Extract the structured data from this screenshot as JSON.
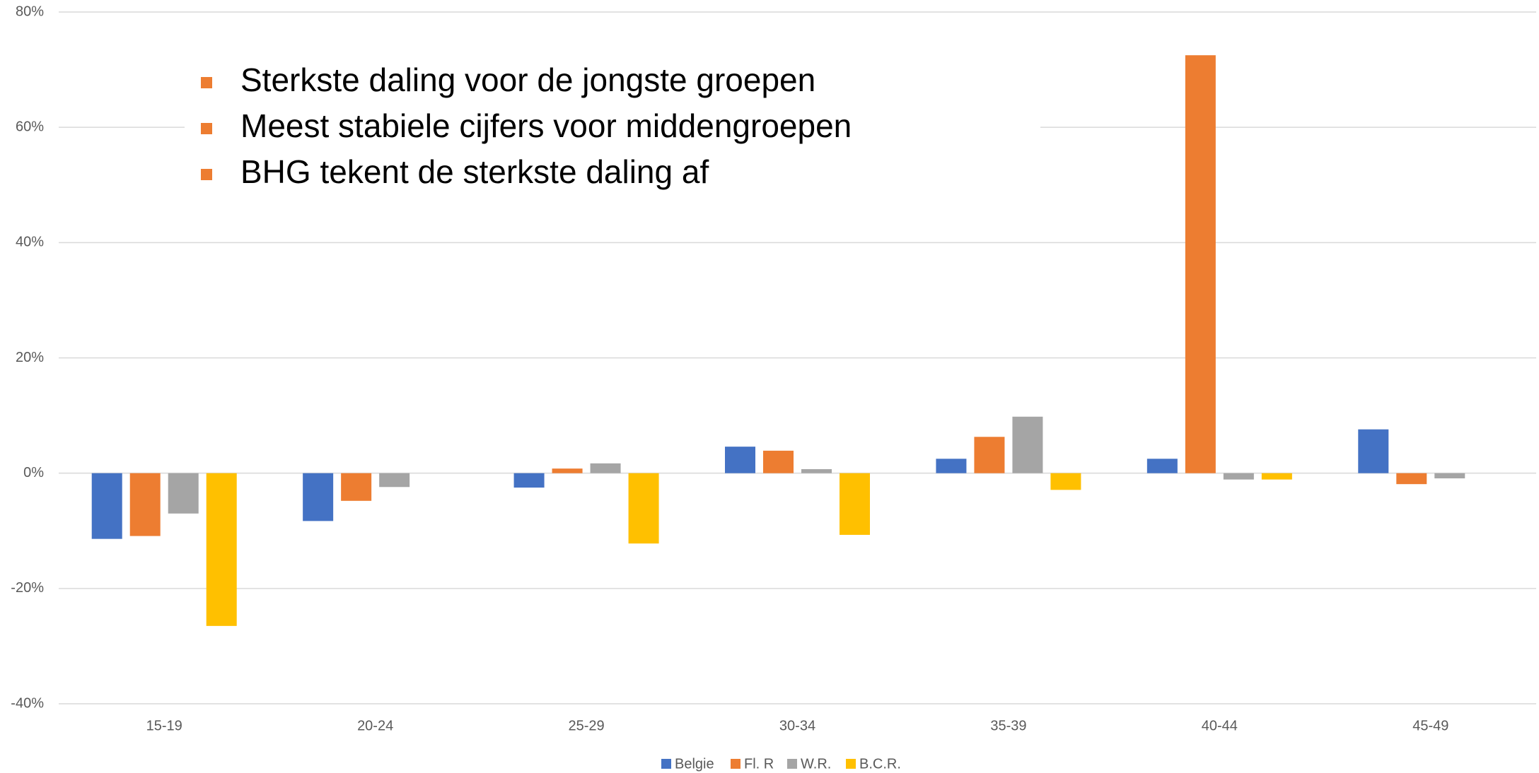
{
  "chart_data": {
    "type": "bar",
    "annotations": [
      "Sterkste daling voor de jongste groepen",
      "Meest stabiele cijfers voor middengroepen",
      "BHG tekent de sterkste daling af"
    ],
    "categories": [
      "15-19",
      "20-24",
      "25-29",
      "30-34",
      "35-39",
      "40-44",
      "45-49"
    ],
    "series": [
      {
        "name": "Belgie",
        "color": "#4472c4",
        "values": [
          -11.4,
          -8.3,
          -2.5,
          4.6,
          2.5,
          2.5,
          7.6
        ]
      },
      {
        "name": "Fl. R",
        "color": "#ed7d31",
        "values": [
          -10.9,
          -4.8,
          0.8,
          3.9,
          6.3,
          72.5,
          -1.9
        ]
      },
      {
        "name": "W.R.",
        "color": "#a5a5a5",
        "values": [
          -7.0,
          -2.4,
          1.7,
          0.7,
          9.8,
          -1.1,
          -0.9
        ]
      },
      {
        "name": "B.C.R.",
        "color": "#ffc000",
        "values": [
          -26.5,
          null,
          -12.2,
          -10.7,
          -2.9,
          -1.1,
          null
        ]
      }
    ],
    "ylim": [
      -40,
      80
    ],
    "yticks": [
      {
        "value": -40,
        "label": "-40%"
      },
      {
        "value": -20,
        "label": "-20%"
      },
      {
        "value": 0,
        "label": "0%"
      },
      {
        "value": 20,
        "label": "20%"
      },
      {
        "value": 40,
        "label": "40%"
      },
      {
        "value": 60,
        "label": "60%"
      },
      {
        "value": 80,
        "label": "80%"
      }
    ],
    "grid": true
  }
}
